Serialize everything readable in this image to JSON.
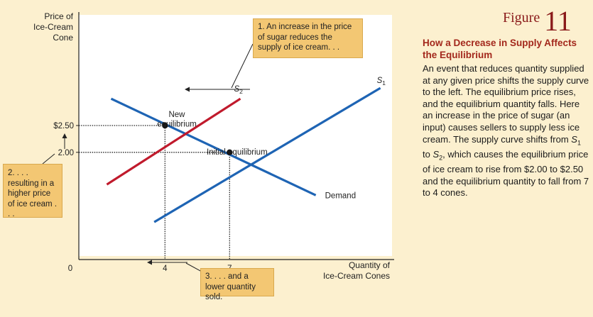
{
  "chart_data": {
    "type": "line",
    "y_axis_title_lines": [
      "Price of",
      "Ice-Cream",
      "Cone"
    ],
    "x_axis_title_lines": [
      "Quantity of",
      "Ice-Cream Cones"
    ],
    "origin_label": "0",
    "y_ticks": [
      {
        "value": 2.0,
        "label": "2.00"
      },
      {
        "value": 2.5,
        "label": "$2.50"
      }
    ],
    "x_ticks": [
      {
        "value": 4,
        "label": "4"
      },
      {
        "value": 7,
        "label": "7"
      }
    ],
    "series": [
      {
        "name": "Demand",
        "color": "#1e64b4",
        "points": [
          [
            1.5,
            3.0
          ],
          [
            11,
            1.2
          ]
        ]
      },
      {
        "name": "S1",
        "name_main": "S",
        "name_sub": "1",
        "color": "#1e64b4",
        "points": [
          [
            3.5,
            0.7
          ],
          [
            14,
            3.2
          ]
        ]
      },
      {
        "name": "S2",
        "name_main": "S",
        "name_sub": "2",
        "color": "#c01a2c",
        "points": [
          [
            1.3,
            1.4
          ],
          [
            7.5,
            3.0
          ]
        ]
      }
    ],
    "equilibria": [
      {
        "label_lines": [
          "New",
          "equilibrium"
        ],
        "x": 4,
        "y": 2.5
      },
      {
        "label_lines": [
          "Initial equilibrium"
        ],
        "x": 7,
        "y": 2.0
      }
    ],
    "annotations": {
      "supply_shift": "1. An increase in the price of sugar reduces the supply of ice cream. . .",
      "price_rise": "2. . . . resulting in a higher price of ice cream . . .",
      "quantity_fall": "3. . . . and a lower quantity sold."
    }
  },
  "figure": {
    "word": "Figure",
    "number": "11"
  },
  "sidebar": {
    "title": "How a Decrease in Supply Affects the Equilibrium",
    "body": "An event that reduces quantity supplied at any given price shifts the supply curve to the left. The equilibrium price rises, and the equilibrium quantity falls. Here an increase in the price of sugar (an input) causes sellers to supply less ice cream. The supply curve shifts from S1 to S2, which causes the equilibrium price of ice cream to rise from $2.00 to $2.50 and the equilibrium quantity to fall from 7 to 4 cones.",
    "body_segments": [
      {
        "text": "An event that reduces quantity supplied at any given price shifts the supply curve to the left. The equilibrium price rises, and the equilibrium quantity falls. Here an increase in the price of sugar (an input) causes sellers to supply less ice cream. The supply curve shifts from "
      },
      {
        "italic": "S",
        "sub": "1"
      },
      {
        "text": " to "
      },
      {
        "italic": "S",
        "sub": "2"
      },
      {
        "text": ", which causes the equilibrium price of ice cream to rise from $2.00 to $2.50 and the equilibrium quantity to fall from 7 to 4 cones."
      }
    ]
  }
}
